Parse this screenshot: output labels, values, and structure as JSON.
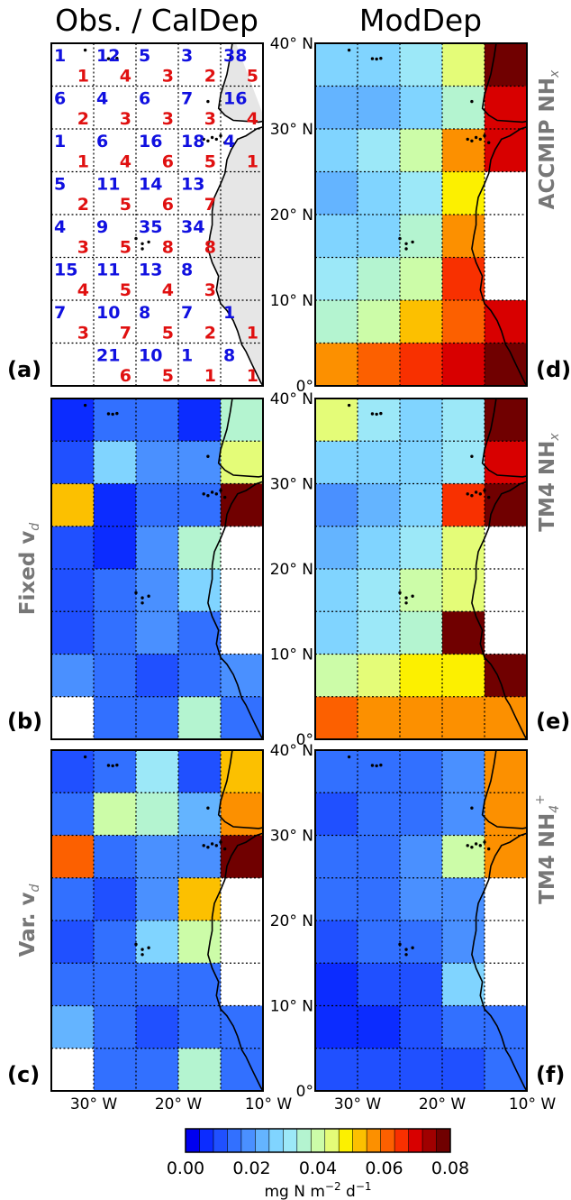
{
  "column_headers": {
    "left": "Obs. / CalDep",
    "right": "ModDep"
  },
  "panel_letters": [
    "(a)",
    "(b)",
    "(c)",
    "(d)",
    "(e)",
    "(f)"
  ],
  "side_labels": {
    "b": {
      "main": "Fixed v",
      "sub": "d"
    },
    "c": {
      "main": "Var. v",
      "sub": "d"
    },
    "d": {
      "main": "ACCMIP NH",
      "sub": "x"
    },
    "e": {
      "main": "TM4 NH",
      "sub": "x"
    },
    "f": {
      "main": "TM4 NH",
      "sub": "4",
      "sup": "+"
    }
  },
  "chart_data": {
    "type": "heatmap",
    "longitude_ticks": [
      "30° W",
      "20° W",
      "10° W"
    ],
    "latitude_ticks": [
      "0°",
      "10° N",
      "20° N",
      "30° N",
      "40° N"
    ],
    "lon_range": [
      -35,
      -10
    ],
    "lat_range": [
      0,
      40
    ],
    "grid": "dotted",
    "colorbar": {
      "range": [
        0.0,
        0.08
      ],
      "ticks": [
        "0.00",
        "0.02",
        "0.04",
        "0.06",
        "0.08"
      ],
      "label": "mg N m",
      "label_exp": "−2",
      "label_unit": " d",
      "label_unit_exp": "−1",
      "colors": [
        "#0000f0",
        "#0c2cff",
        "#2050ff",
        "#3270ff",
        "#4a90ff",
        "#64b4ff",
        "#80d4ff",
        "#9ce8f8",
        "#b4f4d0",
        "#ccfca8",
        "#e4fc78",
        "#fcf000",
        "#fcc000",
        "#fc9000",
        "#fc6000",
        "#f83000",
        "#d80000",
        "#a00000",
        "#700000"
      ]
    },
    "panel_a_counts": {
      "note": "blue = observations, red = CalDep, rows north to south",
      "blue": [
        [
          "1",
          "12",
          "5",
          "3",
          "38"
        ],
        [
          "6",
          "4",
          "6",
          "7",
          "16"
        ],
        [
          "1",
          "6",
          "16",
          "18",
          "4"
        ],
        [
          "5",
          "11",
          "14",
          "13",
          ""
        ],
        [
          "4",
          "9",
          "35",
          "34",
          ""
        ],
        [
          "15",
          "11",
          "13",
          "8",
          ""
        ],
        [
          "7",
          "10",
          "8",
          "7",
          "1"
        ],
        [
          "",
          "21",
          "10",
          "1",
          "8"
        ]
      ],
      "red": [
        [
          "1",
          "4",
          "3",
          "2",
          "5"
        ],
        [
          "2",
          "3",
          "3",
          "3",
          "4"
        ],
        [
          "1",
          "4",
          "6",
          "5",
          "1"
        ],
        [
          "2",
          "5",
          "6",
          "7",
          ""
        ],
        [
          "3",
          "5",
          "8",
          "8",
          ""
        ],
        [
          "4",
          "5",
          "4",
          "3",
          ""
        ],
        [
          "3",
          "7",
          "5",
          "2",
          "1"
        ],
        [
          "",
          "6",
          "5",
          "1",
          "1"
        ]
      ]
    },
    "panels": [
      {
        "id": "b",
        "name": "Fixed v_d",
        "unit": "mg N m-2 d-1",
        "values": [
          [
            0.005,
            0.013,
            0.016,
            0.005,
            0.037
          ],
          [
            0.012,
            0.029,
            0.017,
            0.02,
            0.046
          ],
          [
            0.052,
            0.006,
            0.016,
            0.013,
            0.08
          ],
          [
            0.011,
            0.005,
            0.017,
            0.036,
            null
          ],
          [
            0.012,
            0.013,
            0.017,
            0.028,
            null
          ],
          [
            0.012,
            0.014,
            0.017,
            0.013,
            null
          ],
          [
            0.021,
            0.014,
            0.011,
            0.016,
            0.017
          ],
          [
            null,
            0.015,
            0.014,
            0.034,
            0.016
          ]
        ]
      },
      {
        "id": "c",
        "name": "Var. v_d",
        "unit": "mg N m-2 d-1",
        "values": [
          [
            0.012,
            0.014,
            0.03,
            0.012,
            0.051
          ],
          [
            0.016,
            0.041,
            0.034,
            0.025,
            0.056
          ],
          [
            0.062,
            0.013,
            0.017,
            0.017,
            0.08
          ],
          [
            0.013,
            0.011,
            0.017,
            0.051,
            null
          ],
          [
            0.012,
            0.016,
            0.028,
            0.04,
            null
          ],
          [
            0.013,
            0.013,
            0.014,
            0.013,
            null
          ],
          [
            0.025,
            0.014,
            0.011,
            0.014,
            0.014
          ],
          [
            null,
            0.016,
            0.014,
            0.034,
            0.016
          ]
        ]
      },
      {
        "id": "d",
        "name": "ACCMIP NH_x",
        "unit": "mg N m-2 d-1",
        "values": [
          [
            0.029,
            0.029,
            0.033,
            0.043,
            0.08
          ],
          [
            0.022,
            0.022,
            0.029,
            0.037,
            0.07
          ],
          [
            0.029,
            0.033,
            0.038,
            0.058,
            0.07
          ],
          [
            0.025,
            0.029,
            0.033,
            0.05,
            null
          ],
          [
            0.029,
            0.029,
            0.037,
            0.055,
            null
          ],
          [
            0.033,
            0.037,
            0.041,
            0.066,
            null
          ],
          [
            0.037,
            0.041,
            0.052,
            0.062,
            0.07
          ],
          [
            0.057,
            0.062,
            0.064,
            0.068,
            0.08
          ]
        ]
      },
      {
        "id": "e",
        "name": "TM4 NH_x",
        "unit": "mg N m-2 d-1",
        "values": [
          [
            0.043,
            0.033,
            0.029,
            0.033,
            0.08
          ],
          [
            0.029,
            0.029,
            0.029,
            0.033,
            0.068
          ],
          [
            0.021,
            0.025,
            0.029,
            0.064,
            0.08
          ],
          [
            0.025,
            0.029,
            0.033,
            0.045,
            null
          ],
          [
            0.029,
            0.033,
            0.041,
            0.045,
            null
          ],
          [
            0.029,
            0.033,
            0.037,
            0.08,
            null
          ],
          [
            0.041,
            0.045,
            0.049,
            0.05,
            0.08
          ],
          [
            0.062,
            0.058,
            0.055,
            0.055,
            0.058
          ]
        ]
      },
      {
        "id": "f",
        "name": "TM4 NH_4^+",
        "unit": "mg N m-2 d-1",
        "values": [
          [
            0.013,
            0.016,
            0.016,
            0.021,
            0.055
          ],
          [
            0.012,
            0.013,
            0.016,
            0.018,
            0.056
          ],
          [
            0.013,
            0.016,
            0.017,
            0.041,
            0.056
          ],
          [
            0.013,
            0.016,
            0.017,
            0.021,
            null
          ],
          [
            0.012,
            0.013,
            0.016,
            0.02,
            null
          ],
          [
            0.007,
            0.012,
            0.012,
            0.029,
            null
          ],
          [
            0.007,
            0.007,
            0.012,
            0.016,
            0.016
          ],
          [
            0.011,
            0.011,
            0.012,
            0.012,
            0.013
          ]
        ]
      }
    ]
  }
}
